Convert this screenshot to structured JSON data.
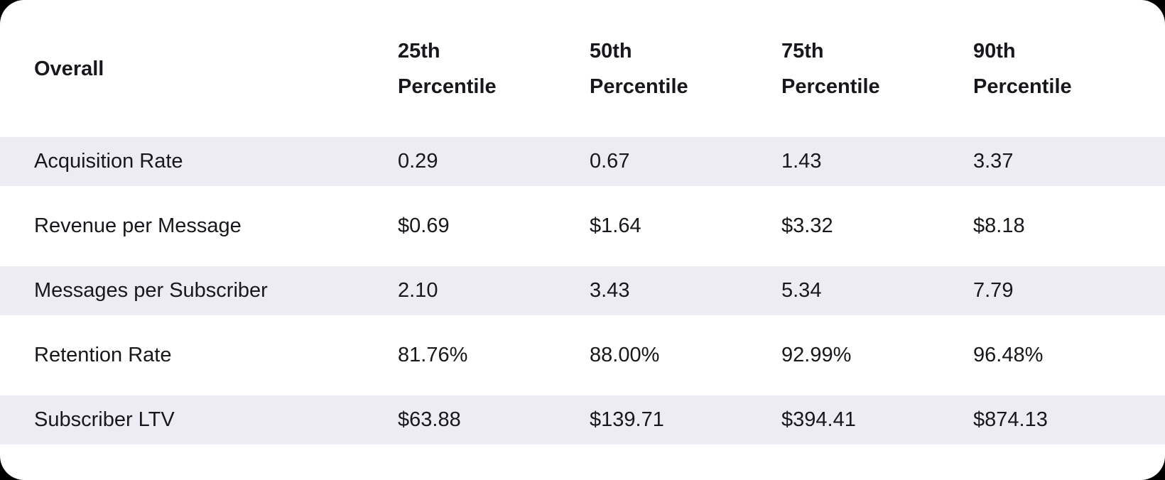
{
  "page": {
    "background_color": "#000000",
    "card_color": "#ffffff",
    "stripe_color": "#edecf5",
    "text_color": "#18181c"
  },
  "table": {
    "header": {
      "label_column": "Overall",
      "columns": [
        "25th Percentile",
        "50th Percentile",
        "75th Percentile",
        "90th Percentile"
      ]
    },
    "rows": [
      {
        "label": "Acquisition Rate",
        "values": [
          "0.29",
          "0.67",
          "1.43",
          "3.37"
        ]
      },
      {
        "label": "Revenue per Message",
        "values": [
          "$0.69",
          "$1.64",
          "$3.32",
          "$8.18"
        ]
      },
      {
        "label": "Messages per Subscriber",
        "values": [
          "2.10",
          "3.43",
          "5.34",
          "7.79"
        ]
      },
      {
        "label": "Retention Rate",
        "values": [
          "81.76%",
          "88.00%",
          "92.99%",
          "96.48%"
        ]
      },
      {
        "label": "Subscriber LTV",
        "values": [
          "$63.88",
          "$139.71",
          "$394.41",
          "$874.13"
        ]
      }
    ]
  },
  "chart_data": {
    "type": "table",
    "title": "Overall",
    "columns": [
      "Overall",
      "25th Percentile",
      "50th Percentile",
      "75th Percentile",
      "90th Percentile"
    ],
    "rows": [
      [
        "Acquisition Rate",
        "0.29",
        "0.67",
        "1.43",
        "3.37"
      ],
      [
        "Revenue per Message",
        "$0.69",
        "$1.64",
        "$3.32",
        "$8.18"
      ],
      [
        "Messages per Subscriber",
        "2.10",
        "3.43",
        "5.34",
        "7.79"
      ],
      [
        "Retention Rate",
        "81.76%",
        "88.00%",
        "92.99%",
        "96.48%"
      ],
      [
        "Subscriber LTV",
        "$63.88",
        "$139.71",
        "$394.41",
        "$874.13"
      ]
    ]
  }
}
